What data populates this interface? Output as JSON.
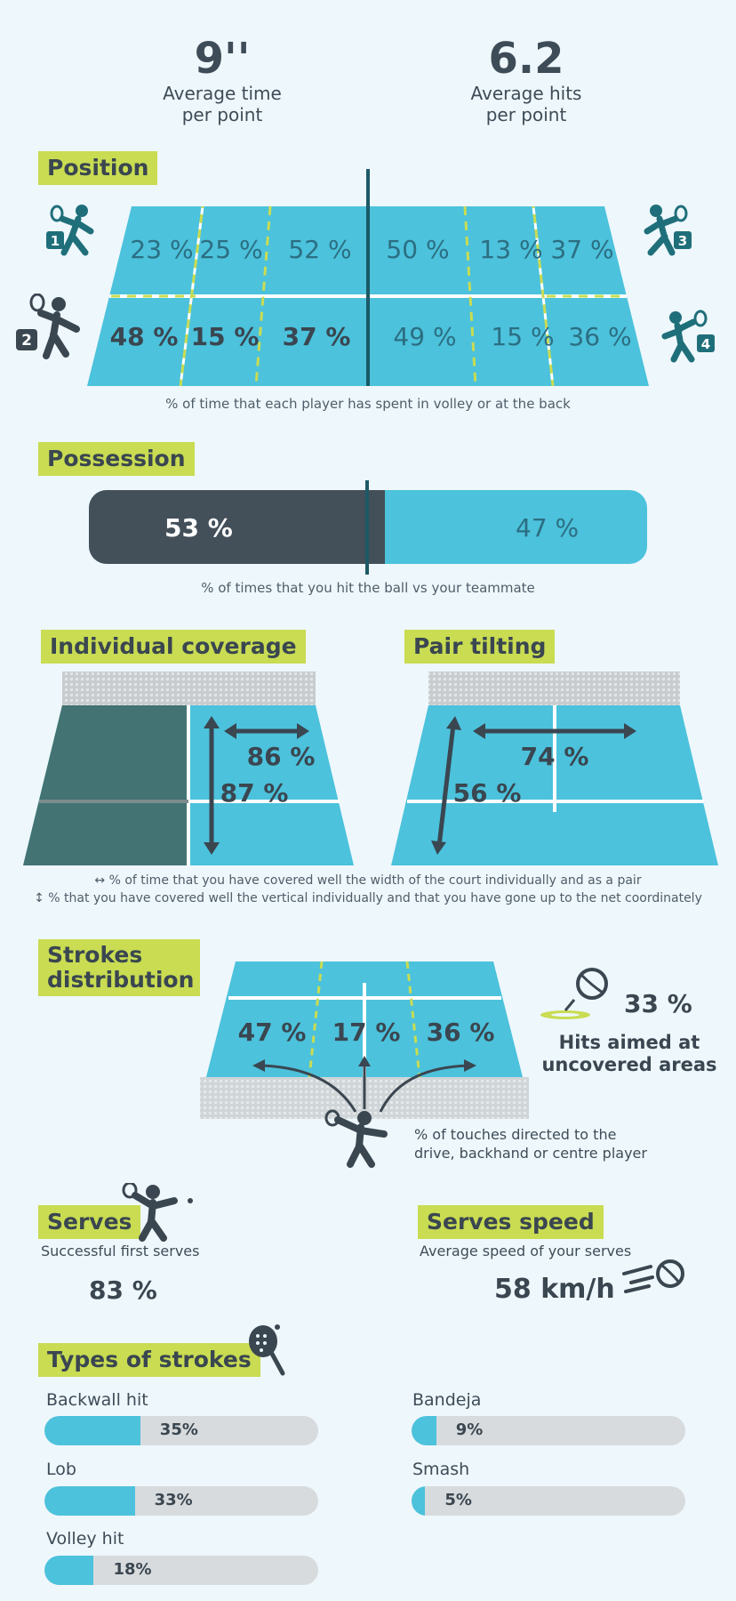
{
  "stats": {
    "avg_time_value": "9''",
    "avg_time_label_1": "Average time",
    "avg_time_label_2": "per point",
    "avg_hits_value": "6.2",
    "avg_hits_label_1": "Average hits",
    "avg_hits_label_2": "per point"
  },
  "position": {
    "title": "Position",
    "player_badges": [
      "1",
      "2",
      "3",
      "4"
    ],
    "top_row": [
      "23 %",
      "25 %",
      "52 %",
      "50 %",
      "13 %",
      "37 %"
    ],
    "bottom_row": [
      "48 %",
      "15 %",
      "37 %",
      "49 %",
      "15 %",
      "36 %"
    ],
    "caption": "% of time that each player has spent in volley or at the back"
  },
  "possession": {
    "title": "Possession",
    "left_value": "53 %",
    "right_value": "47 %",
    "left_fraction": 0.53,
    "caption": "% of times that you hit the ball vs your teammate"
  },
  "coverage": {
    "individual_title": "Individual coverage",
    "individual_width": "86 %",
    "individual_vertical": "87 %",
    "pair_title": "Pair tilting",
    "pair_width": "74 %",
    "pair_vertical": "56 %",
    "caption_1": "↔ % of time that you have covered well the width of the court individually and as a pair",
    "caption_2": "↕ % that you have covered well the vertical individually and that you have gone up to the net coordinately"
  },
  "strokes": {
    "title_1": "Strokes",
    "title_2": "distribution",
    "left": "47 %",
    "centre": "17 %",
    "right": "36 %",
    "caption_1": "% of touches directed to the",
    "caption_2": "drive, backhand or centre player",
    "uncovered_value": "33 %",
    "uncovered_label_1": "Hits aimed at",
    "uncovered_label_2": "uncovered areas"
  },
  "serves": {
    "title": "Serves",
    "subtitle": "Successful first serves",
    "value": "83 %",
    "speed_title": "Serves speed",
    "speed_subtitle": "Average speed of your serves",
    "speed_value": "58 km/h"
  },
  "types": {
    "title": "Types of strokes",
    "items": [
      {
        "label": "Backwall hit",
        "value": "35%",
        "fraction": 0.35
      },
      {
        "label": "Lob",
        "value": "33%",
        "fraction": 0.33
      },
      {
        "label": "Volley hit",
        "value": "18%",
        "fraction": 0.18
      },
      {
        "label": "Bandeja",
        "value": "9%",
        "fraction": 0.09
      },
      {
        "label": "Smash",
        "value": "5%",
        "fraction": 0.05
      }
    ]
  },
  "colors": {
    "court": "#4cc2dc",
    "dark": "#434f59",
    "accent": "#c9dc52",
    "player": "#1f6f7a"
  }
}
